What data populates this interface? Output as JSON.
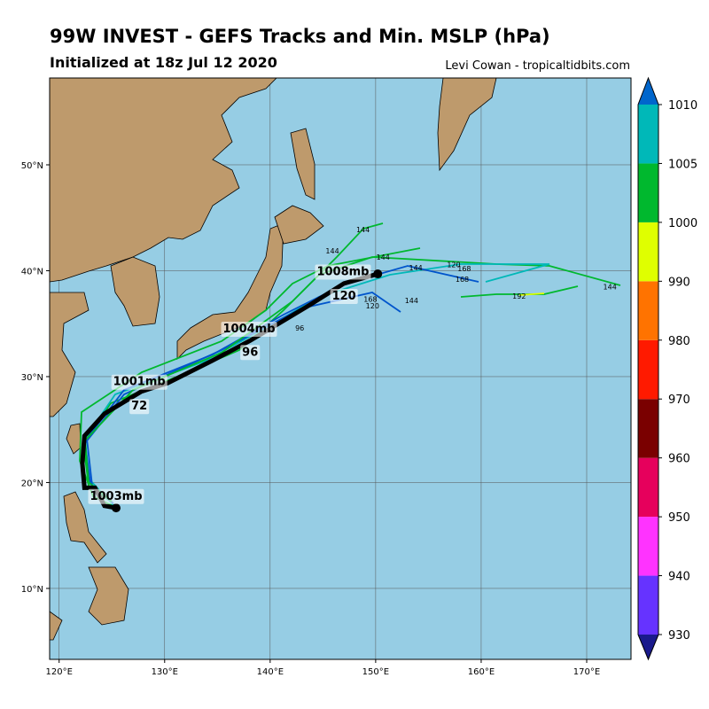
{
  "header": {
    "title": "99W INVEST - GEFS Tracks and Min. MSLP (hPa)",
    "subtitle": "Initialized at 18z Jul 12 2020",
    "credit": "Levi Cowan - tropicaltidbits.com"
  },
  "map": {
    "lon_range": [
      119.1,
      174.2
    ],
    "lat_range": [
      3.3,
      58.2
    ],
    "lon_ticks": [
      {
        "value": 120,
        "label": "120°E"
      },
      {
        "value": 130,
        "label": "130°E"
      },
      {
        "value": 140,
        "label": "140°E"
      },
      {
        "value": 150,
        "label": "150°E"
      },
      {
        "value": 160,
        "label": "160°E"
      },
      {
        "value": 170,
        "label": "170°E"
      }
    ],
    "lat_ticks": [
      {
        "value": 10,
        "label": "10°N"
      },
      {
        "value": 20,
        "label": "20°N"
      },
      {
        "value": 30,
        "label": "30°N"
      },
      {
        "value": 40,
        "label": "40°N"
      },
      {
        "value": 50,
        "label": "50°N"
      }
    ],
    "ocean_color": "#96cde4",
    "mean_track": {
      "color": "#000000",
      "lon": [
        125.4,
        124.3,
        123.4,
        122.4,
        122.2,
        122.4,
        124.3,
        127.8,
        130.3,
        134.5,
        138.1,
        141.3,
        143.8,
        147.0,
        150.2
      ],
      "lat": [
        17.6,
        17.8,
        19.5,
        19.5,
        21.8,
        24.4,
        26.5,
        28.6,
        29.4,
        31.5,
        33.4,
        35.3,
        36.8,
        38.8,
        39.7
      ]
    },
    "mean_labels": [
      {
        "text": "1003mb",
        "lon": 125.4,
        "lat": 18.8
      },
      {
        "text": "1001mb",
        "lon": 127.6,
        "lat": 29.6
      },
      {
        "text": "72",
        "lon": 127.6,
        "lat": 27.3
      },
      {
        "text": "1004mb",
        "lon": 138.0,
        "lat": 34.6
      },
      {
        "text": "96",
        "lon": 138.1,
        "lat": 32.4
      },
      {
        "text": "1008mb",
        "lon": 146.9,
        "lat": 40.0
      },
      {
        "text": "120",
        "lon": 147.0,
        "lat": 37.7
      }
    ],
    "member_labels": [
      {
        "text": "144",
        "lon": 148.8,
        "lat": 43.9
      },
      {
        "text": "144",
        "lon": 150.7,
        "lat": 41.3
      },
      {
        "text": "144",
        "lon": 153.8,
        "lat": 40.3
      },
      {
        "text": "144",
        "lon": 153.4,
        "lat": 37.2
      },
      {
        "text": "144",
        "lon": 145.9,
        "lat": 41.9
      },
      {
        "text": "144",
        "lon": 172.2,
        "lat": 38.5
      },
      {
        "text": "120",
        "lon": 157.4,
        "lat": 40.6
      },
      {
        "text": "120",
        "lon": 149.7,
        "lat": 36.7
      },
      {
        "text": "168",
        "lon": 158.4,
        "lat": 40.2
      },
      {
        "text": "168",
        "lon": 158.2,
        "lat": 39.2
      },
      {
        "text": "168",
        "lon": 149.5,
        "lat": 37.3
      },
      {
        "text": "192",
        "lon": 163.6,
        "lat": 37.6
      },
      {
        "text": "96",
        "lon": 142.8,
        "lat": 34.6
      }
    ]
  },
  "colorbar": {
    "ticks": [
      930,
      940,
      950,
      960,
      970,
      980,
      990,
      1000,
      1005,
      1010
    ],
    "colors": [
      "#6633ff",
      "#ff33ff",
      "#e6005c",
      "#7a0000",
      "#ff1a00",
      "#ff7300",
      "#dfff00",
      "#00b82e",
      "#00b8b8"
    ],
    "under_color": "#1a1a8c",
    "over_color": "#0066cc"
  }
}
